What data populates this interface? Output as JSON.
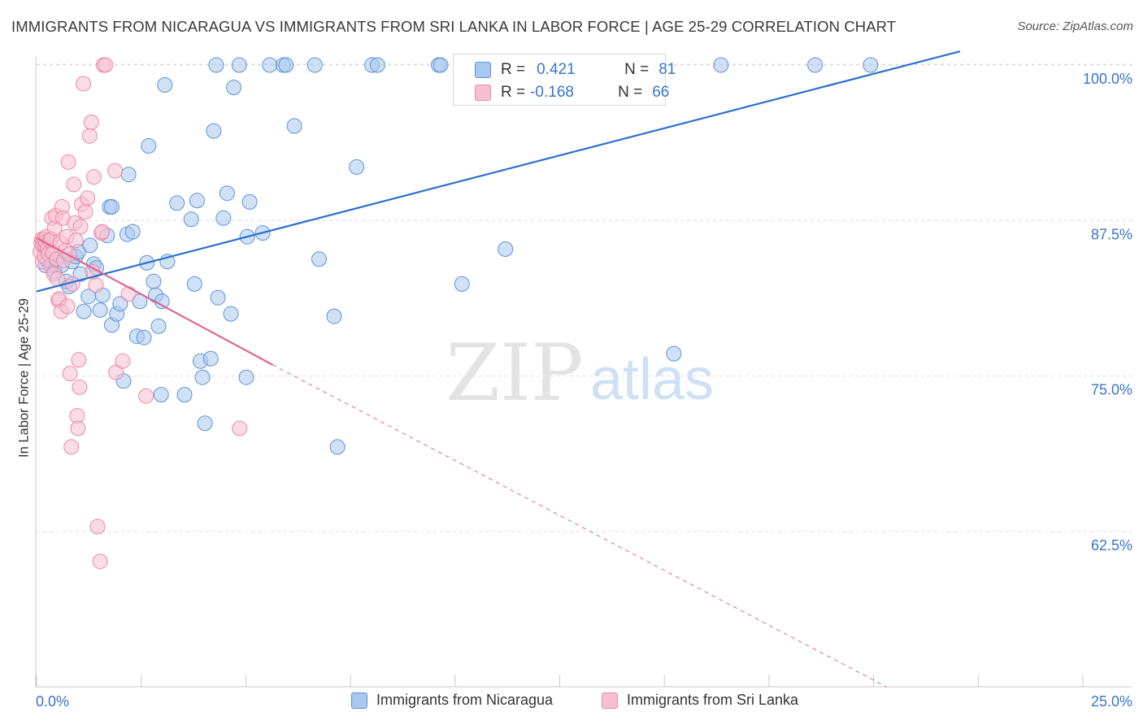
{
  "header": {
    "title": "IMMIGRANTS FROM NICARAGUA VS IMMIGRANTS FROM SRI LANKA IN LABOR FORCE | AGE 25-29 CORRELATION CHART",
    "source": "Source: ZipAtlas.com"
  },
  "watermark": {
    "zip": "ZIP",
    "atlas": "atlas"
  },
  "colors": {
    "nicaragua_fill": "#a9c8ef",
    "nicaragua_stroke": "#5b93d9",
    "nicaragua_line": "#2d6fcc",
    "srilanka_fill": "#f6bfd0",
    "srilanka_stroke": "#e98aa8",
    "srilanka_line": "#e06690",
    "axis_label": "#3a74c9",
    "grid": "#dcdcdc"
  },
  "legend": {
    "rows": [
      {
        "r_label": "R =",
        "r_value": "0.421",
        "n_label": "N =",
        "n_value": "81"
      },
      {
        "r_label": "R =",
        "r_value": "-0.168",
        "n_label": "N =",
        "n_value": "66"
      }
    ]
  },
  "chart_data": {
    "type": "scatter",
    "title": "IMMIGRANTS FROM NICARAGUA VS IMMIGRANTS FROM SRI LANKA IN LABOR FORCE | AGE 25-29 CORRELATION CHART",
    "xlabel": "",
    "ylabel": "In Labor Force | Age 25-29",
    "xlim": [
      0,
      25
    ],
    "ylim": [
      50,
      102
    ],
    "x_tick_labels": [
      "0.0%",
      "25.0%"
    ],
    "y_ticks": [
      62.5,
      75.0,
      87.5,
      100.0
    ],
    "y_tick_labels": [
      "62.5%",
      "75.0%",
      "87.5%",
      "100.0%"
    ],
    "grid": true,
    "series": [
      {
        "name": "Immigrants from Nicaragua",
        "r": 0.421,
        "n": 81,
        "trend": {
          "x": [
            0.0,
            22.1
          ],
          "y": [
            81.8,
            101.1
          ],
          "style": "solid"
        },
        "points": [
          [
            0.21,
            83.9
          ],
          [
            0.26,
            84.3
          ],
          [
            0.37,
            84.0
          ],
          [
            0.43,
            83.4
          ],
          [
            0.47,
            84.4
          ],
          [
            0.6,
            83.9
          ],
          [
            0.71,
            82.6
          ],
          [
            0.78,
            82.2
          ],
          [
            0.85,
            84.2
          ],
          [
            0.94,
            84.6
          ],
          [
            1.0,
            85.0
          ],
          [
            1.05,
            83.2
          ],
          [
            1.13,
            80.2
          ],
          [
            1.24,
            81.4
          ],
          [
            1.28,
            85.5
          ],
          [
            1.37,
            84.0
          ],
          [
            1.43,
            83.7
          ],
          [
            1.52,
            80.3
          ],
          [
            1.58,
            81.5
          ],
          [
            1.69,
            86.3
          ],
          [
            1.75,
            88.6
          ],
          [
            1.8,
            79.1
          ],
          [
            1.92,
            80.0
          ],
          [
            2.0,
            80.8
          ],
          [
            2.08,
            74.6
          ],
          [
            2.17,
            86.4
          ],
          [
            2.2,
            91.2
          ],
          [
            2.3,
            86.6
          ],
          [
            2.4,
            78.2
          ],
          [
            2.47,
            81.0
          ],
          [
            2.57,
            78.1
          ],
          [
            2.64,
            84.1
          ],
          [
            2.68,
            93.5
          ],
          [
            2.8,
            82.6
          ],
          [
            2.85,
            81.5
          ],
          [
            2.92,
            79.0
          ],
          [
            2.98,
            73.5
          ],
          [
            3.0,
            81.0
          ],
          [
            3.07,
            98.4
          ],
          [
            3.13,
            84.2
          ],
          [
            3.36,
            88.9
          ],
          [
            3.54,
            73.5
          ],
          [
            3.7,
            87.6
          ],
          [
            3.78,
            82.4
          ],
          [
            3.84,
            89.1
          ],
          [
            3.92,
            76.2
          ],
          [
            3.97,
            74.9
          ],
          [
            4.03,
            71.2
          ],
          [
            4.17,
            76.4
          ],
          [
            4.24,
            94.7
          ],
          [
            4.3,
            100.0
          ],
          [
            4.34,
            81.3
          ],
          [
            4.47,
            87.7
          ],
          [
            4.56,
            89.7
          ],
          [
            4.65,
            80.0
          ],
          [
            4.72,
            98.2
          ],
          [
            4.85,
            100.0
          ],
          [
            5.02,
            74.9
          ],
          [
            5.04,
            86.2
          ],
          [
            5.1,
            89.0
          ],
          [
            5.41,
            86.5
          ],
          [
            5.58,
            100.0
          ],
          [
            5.9,
            100.0
          ],
          [
            5.97,
            100.0
          ],
          [
            6.17,
            95.1
          ],
          [
            6.66,
            100.0
          ],
          [
            6.76,
            84.4
          ],
          [
            7.12,
            79.8
          ],
          [
            7.2,
            69.3
          ],
          [
            7.66,
            91.8
          ],
          [
            8.03,
            100.0
          ],
          [
            8.16,
            100.0
          ],
          [
            9.62,
            100.0
          ],
          [
            10.18,
            82.4
          ],
          [
            11.22,
            85.2
          ],
          [
            15.25,
            76.8
          ],
          [
            16.38,
            100.0
          ],
          [
            18.63,
            100.0
          ],
          [
            19.96,
            100.0
          ],
          [
            9.67,
            100.0
          ],
          [
            1.8,
            88.6
          ]
        ]
      },
      {
        "name": "Immigrants from Sri Lanka",
        "r": -0.168,
        "n": 66,
        "trend": {
          "x": [
            0.0,
            5.65
          ],
          "y": [
            86.1,
            75.9
          ],
          "style": "solid"
        },
        "trend_extension": {
          "x": [
            5.65,
            20.35
          ],
          "y": [
            75.9,
            50.0
          ],
          "style": "dashed"
        },
        "points": [
          [
            0.09,
            85.0
          ],
          [
            0.11,
            85.7
          ],
          [
            0.13,
            86.0
          ],
          [
            0.14,
            84.2
          ],
          [
            0.15,
            85.5
          ],
          [
            0.17,
            86.0
          ],
          [
            0.19,
            84.6
          ],
          [
            0.21,
            85.4
          ],
          [
            0.22,
            85.8
          ],
          [
            0.24,
            86.2
          ],
          [
            0.26,
            85.2
          ],
          [
            0.28,
            84.8
          ],
          [
            0.31,
            85.9
          ],
          [
            0.33,
            83.9
          ],
          [
            0.35,
            86.0
          ],
          [
            0.37,
            87.7
          ],
          [
            0.39,
            84.9
          ],
          [
            0.41,
            83.2
          ],
          [
            0.43,
            86.9
          ],
          [
            0.46,
            87.9
          ],
          [
            0.48,
            84.4
          ],
          [
            0.5,
            82.8
          ],
          [
            0.52,
            81.1
          ],
          [
            0.54,
            81.2
          ],
          [
            0.57,
            85.7
          ],
          [
            0.59,
            80.2
          ],
          [
            0.61,
            88.6
          ],
          [
            0.63,
            87.7
          ],
          [
            0.65,
            84.3
          ],
          [
            0.69,
            85.1
          ],
          [
            0.72,
            86.2
          ],
          [
            0.74,
            80.6
          ],
          [
            0.76,
            92.2
          ],
          [
            0.78,
            84.8
          ],
          [
            0.8,
            75.2
          ],
          [
            0.83,
            69.3
          ],
          [
            0.86,
            82.4
          ],
          [
            0.89,
            90.4
          ],
          [
            0.91,
            87.3
          ],
          [
            0.94,
            85.9
          ],
          [
            0.97,
            71.8
          ],
          [
            0.99,
            70.8
          ],
          [
            1.01,
            76.3
          ],
          [
            1.03,
            74.1
          ],
          [
            1.05,
            87.0
          ],
          [
            1.08,
            88.8
          ],
          [
            1.12,
            98.5
          ],
          [
            1.17,
            88.2
          ],
          [
            1.22,
            89.3
          ],
          [
            1.27,
            94.3
          ],
          [
            1.31,
            95.4
          ],
          [
            1.34,
            83.4
          ],
          [
            1.37,
            91.0
          ],
          [
            1.42,
            82.3
          ],
          [
            1.46,
            62.9
          ],
          [
            1.52,
            60.1
          ],
          [
            1.55,
            86.5
          ],
          [
            1.57,
            86.6
          ],
          [
            1.6,
            100.0
          ],
          [
            1.65,
            100.0
          ],
          [
            1.88,
            91.5
          ],
          [
            1.9,
            75.3
          ],
          [
            2.06,
            76.2
          ],
          [
            2.2,
            81.6
          ],
          [
            2.62,
            73.4
          ],
          [
            4.86,
            70.8
          ]
        ]
      }
    ]
  },
  "bottom_legend": {
    "items": [
      {
        "label": "Immigrants from Nicaragua"
      },
      {
        "label": "Immigrants from Sri Lanka"
      }
    ]
  }
}
